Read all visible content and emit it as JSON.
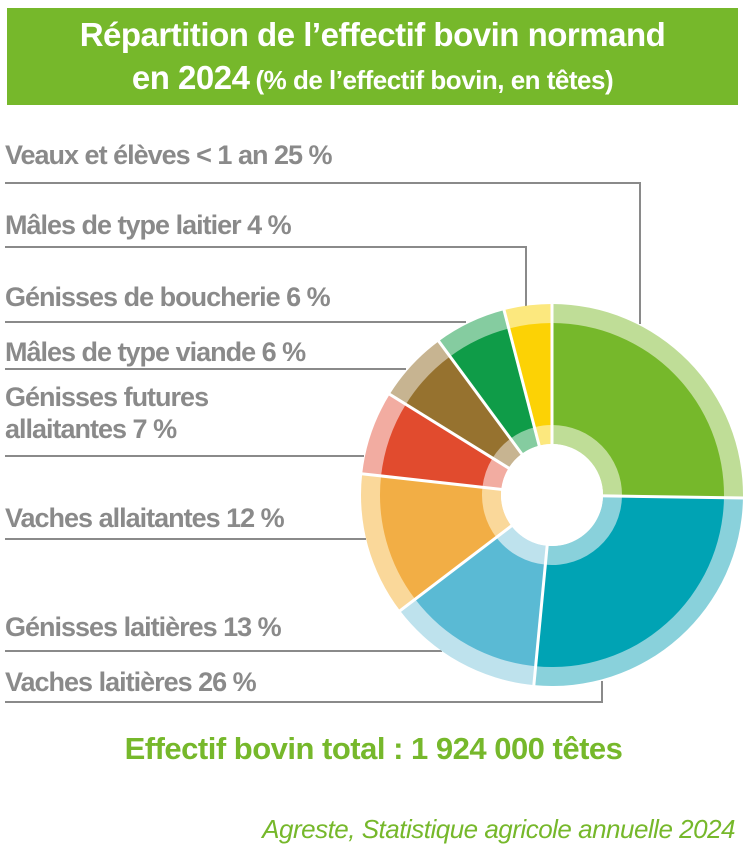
{
  "header": {
    "title_line1": "Répartition de l’effectif bovin normand",
    "title_line2_bold": "en 2024",
    "title_line2_sub": "(% de l’effectif bovin, en têtes)"
  },
  "callouts": [
    {
      "text": "Veaux et élèves < 1 an 25 %"
    },
    {
      "text": "Mâles de type laitier 4 %"
    },
    {
      "text": "Génisses de boucherie 6 %"
    },
    {
      "text": "Mâles de type viande 6 %"
    },
    {
      "text": "Génisses futures allaitantes 7 %"
    },
    {
      "text": "Vaches allaitantes 12 %"
    },
    {
      "text": "Génisses laitières 13 %"
    },
    {
      "text": "Vaches laitières 26 %"
    }
  ],
  "chart_data": {
    "type": "pie",
    "subtype": "donut",
    "title": "Répartition de l’effectif bovin normand en 2024 (% de l’effectif bovin, en têtes)",
    "unit": "% de l’effectif bovin, en têtes",
    "start": "top",
    "direction": "clockwise",
    "legend_position": "left-callout-labels",
    "total_heads": 1924000,
    "segments": [
      {
        "label": "Veaux et élèves < 1 an",
        "value": 25,
        "color": "#76B82B",
        "light_color": "#BFDD97"
      },
      {
        "label": "Vaches laitières",
        "value": 26,
        "color": "#00A3B4",
        "light_color": "#89D1DB"
      },
      {
        "label": "Génisses laitières",
        "value": 13,
        "color": "#5ABAD4",
        "light_color": "#BEE2ED"
      },
      {
        "label": "Vaches allaitantes",
        "value": 12,
        "color": "#F2AE45",
        "light_color": "#FAD89A"
      },
      {
        "label": "Génisses futures allaitantes",
        "value": 7,
        "color": "#E14B2E",
        "light_color": "#F2ACA1"
      },
      {
        "label": "Mâles de type viande",
        "value": 6,
        "color": "#96722F",
        "light_color": "#C7B491"
      },
      {
        "label": "Génisses de boucherie",
        "value": 6,
        "color": "#0F9C48",
        "light_color": "#85CCA0"
      },
      {
        "label": "Mâles de type laitier",
        "value": 4,
        "color": "#FCD205",
        "light_color": "#FCE87E"
      }
    ]
  },
  "footer": {
    "total_label": "Effectif bovin total : 1 924 000 têtes",
    "source": "Agreste, Statistique agricole annuelle 2024"
  },
  "colors": {
    "accent_green": "#76B82B",
    "label_gray": "#8A8A8A",
    "background": "#FFFFFF"
  }
}
